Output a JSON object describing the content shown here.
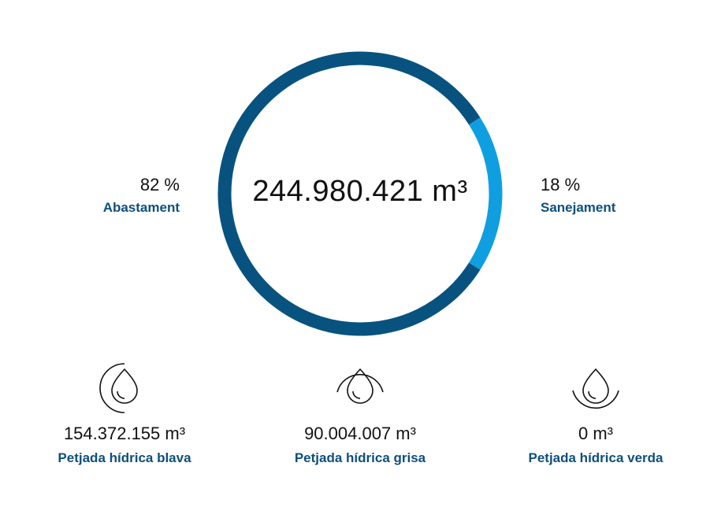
{
  "chart_data": {
    "type": "pie",
    "total": "244.980.421 m³",
    "slices": [
      {
        "name": "Abastament",
        "percent_label": "82 %",
        "value": 82,
        "color": "#08527f"
      },
      {
        "name": "Sanejament",
        "percent_label": "18 %",
        "value": 18,
        "color": "#0f9fe0"
      }
    ]
  },
  "footprints": [
    {
      "value": "154.372.155 m³",
      "label": "Petjada hídrica blava",
      "icon": "water-drop-blue-icon"
    },
    {
      "value": "90.004.007 m³",
      "label": "Petjada hídrica grisa",
      "icon": "water-drop-grey-icon"
    },
    {
      "value": "0 m³",
      "label": "Petjada hídrica verda",
      "icon": "water-drop-green-icon"
    }
  ]
}
